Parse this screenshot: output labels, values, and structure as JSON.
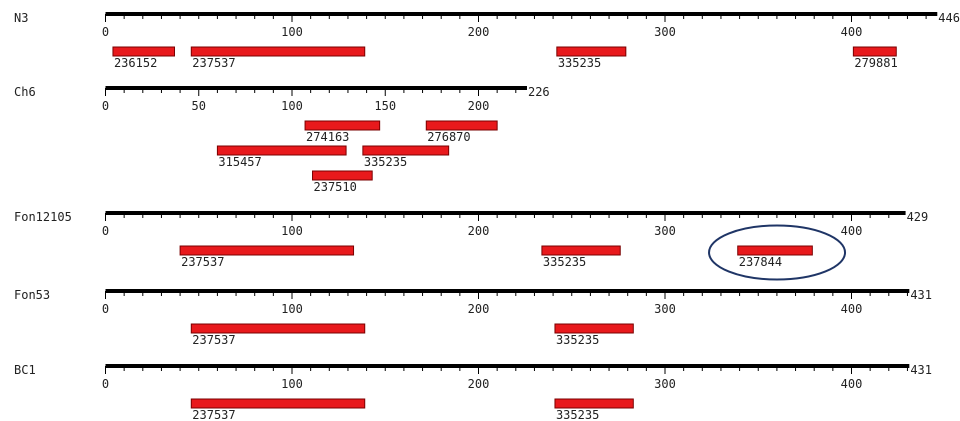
{
  "colors": {
    "axis": "#000000",
    "feature_fill": "#e8191c",
    "feature_stroke": "#7a0000",
    "highlight_ring": "#1f3566",
    "text": "#222222"
  },
  "tracks": [
    {
      "name": "N3",
      "length": 446,
      "end_label": "446",
      "ticks": [
        {
          "value": 0,
          "label": "0"
        },
        {
          "value": 100,
          "label": "100"
        },
        {
          "value": 200,
          "label": "200"
        },
        {
          "value": 300,
          "label": "300"
        },
        {
          "value": 400,
          "label": "400"
        }
      ],
      "features": [
        {
          "label": "236152",
          "start": 4,
          "end": 37,
          "row": 0
        },
        {
          "label": "237537",
          "start": 46,
          "end": 139,
          "row": 0
        },
        {
          "label": "335235",
          "start": 242,
          "end": 279,
          "row": 0
        },
        {
          "label": "279881",
          "start": 401,
          "end": 424,
          "row": 0
        }
      ]
    },
    {
      "name": "Ch6",
      "length": 226,
      "end_label": "226",
      "ticks": [
        {
          "value": 0,
          "label": "0"
        },
        {
          "value": 50,
          "label": "50"
        },
        {
          "value": 100,
          "label": "100"
        },
        {
          "value": 150,
          "label": "150"
        },
        {
          "value": 200,
          "label": "200"
        }
      ],
      "features": [
        {
          "label": "274163",
          "start": 107,
          "end": 147,
          "row": 0
        },
        {
          "label": "276870",
          "start": 172,
          "end": 210,
          "row": 0
        },
        {
          "label": "315457",
          "start": 60,
          "end": 129,
          "row": 1
        },
        {
          "label": "335235",
          "start": 138,
          "end": 184,
          "row": 1
        },
        {
          "label": "237510",
          "start": 111,
          "end": 143,
          "row": 2
        }
      ]
    },
    {
      "name": "Fon12105",
      "length": 429,
      "end_label": "429",
      "ticks": [
        {
          "value": 0,
          "label": "0"
        },
        {
          "value": 100,
          "label": "100"
        },
        {
          "value": 200,
          "label": "200"
        },
        {
          "value": 300,
          "label": "300"
        },
        {
          "value": 400,
          "label": "400"
        }
      ],
      "features": [
        {
          "label": "237537",
          "start": 40,
          "end": 133,
          "row": 0
        },
        {
          "label": "335235",
          "start": 234,
          "end": 276,
          "row": 0
        },
        {
          "label": "237844",
          "start": 339,
          "end": 379,
          "row": 0,
          "highlighted": true
        }
      ]
    },
    {
      "name": "Fon53",
      "length": 431,
      "end_label": "431",
      "ticks": [
        {
          "value": 0,
          "label": "0"
        },
        {
          "value": 100,
          "label": "100"
        },
        {
          "value": 200,
          "label": "200"
        },
        {
          "value": 300,
          "label": "300"
        },
        {
          "value": 400,
          "label": "400"
        }
      ],
      "features": [
        {
          "label": "237537",
          "start": 46,
          "end": 139,
          "row": 0
        },
        {
          "label": "335235",
          "start": 241,
          "end": 283,
          "row": 0
        }
      ]
    },
    {
      "name": "BC1",
      "length": 431,
      "end_label": "431",
      "ticks": [
        {
          "value": 0,
          "label": "0"
        },
        {
          "value": 100,
          "label": "100"
        },
        {
          "value": 200,
          "label": "200"
        },
        {
          "value": 300,
          "label": "300"
        },
        {
          "value": 400,
          "label": "400"
        }
      ],
      "features": [
        {
          "label": "237537",
          "start": 46,
          "end": 139,
          "row": 0
        },
        {
          "label": "335235",
          "start": 241,
          "end": 283,
          "row": 0
        }
      ]
    }
  ]
}
